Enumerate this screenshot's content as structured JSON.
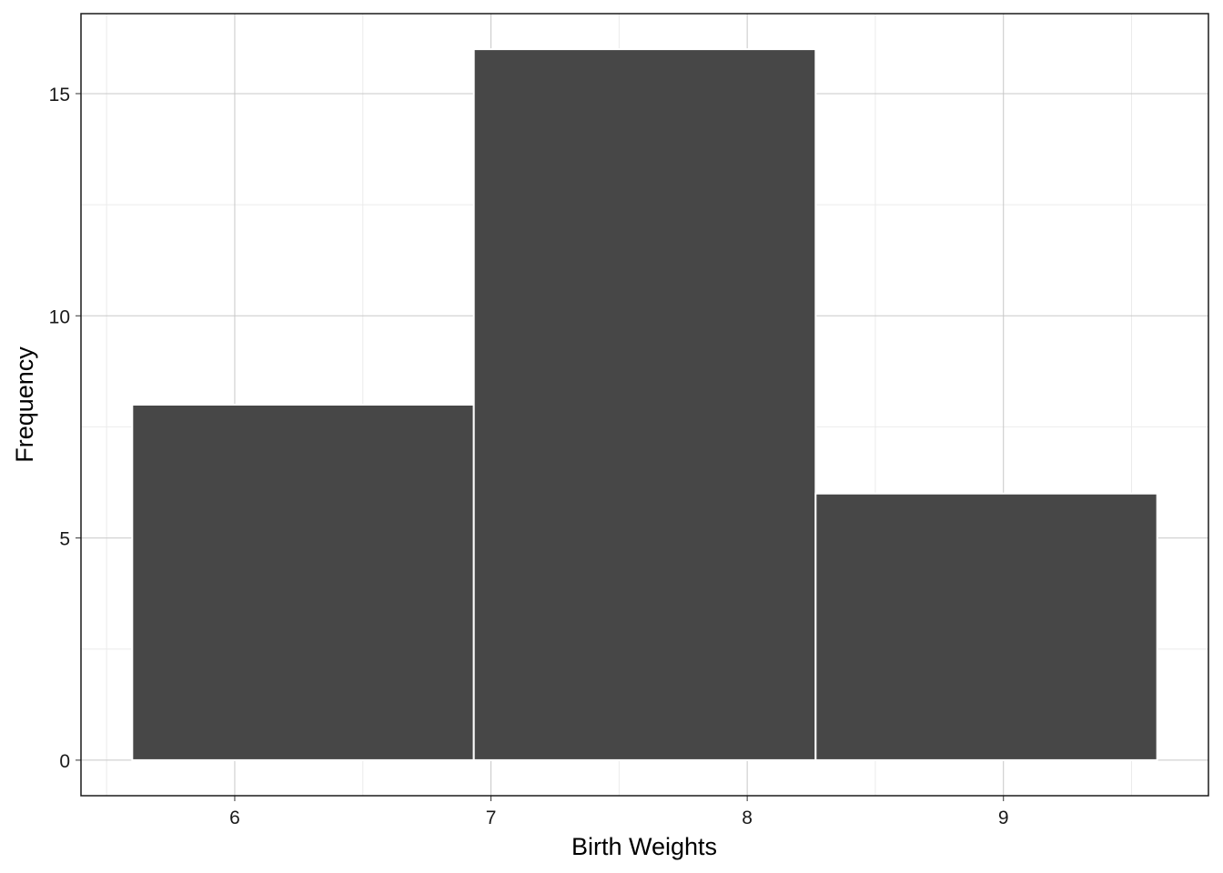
{
  "chart_data": {
    "type": "histogram",
    "x_label": "Birth Weights",
    "y_label": "Frequency",
    "bins": [
      5.6,
      6.933,
      8.267,
      9.6
    ],
    "values": [
      8,
      16,
      6
    ],
    "color": "#474747",
    "xlim": [
      5.4,
      9.8
    ],
    "ylim": [
      -0.8,
      16.8
    ],
    "xticks": [
      6,
      7,
      8,
      9
    ],
    "yticks": [
      0,
      5,
      10,
      15
    ],
    "grid": true
  }
}
